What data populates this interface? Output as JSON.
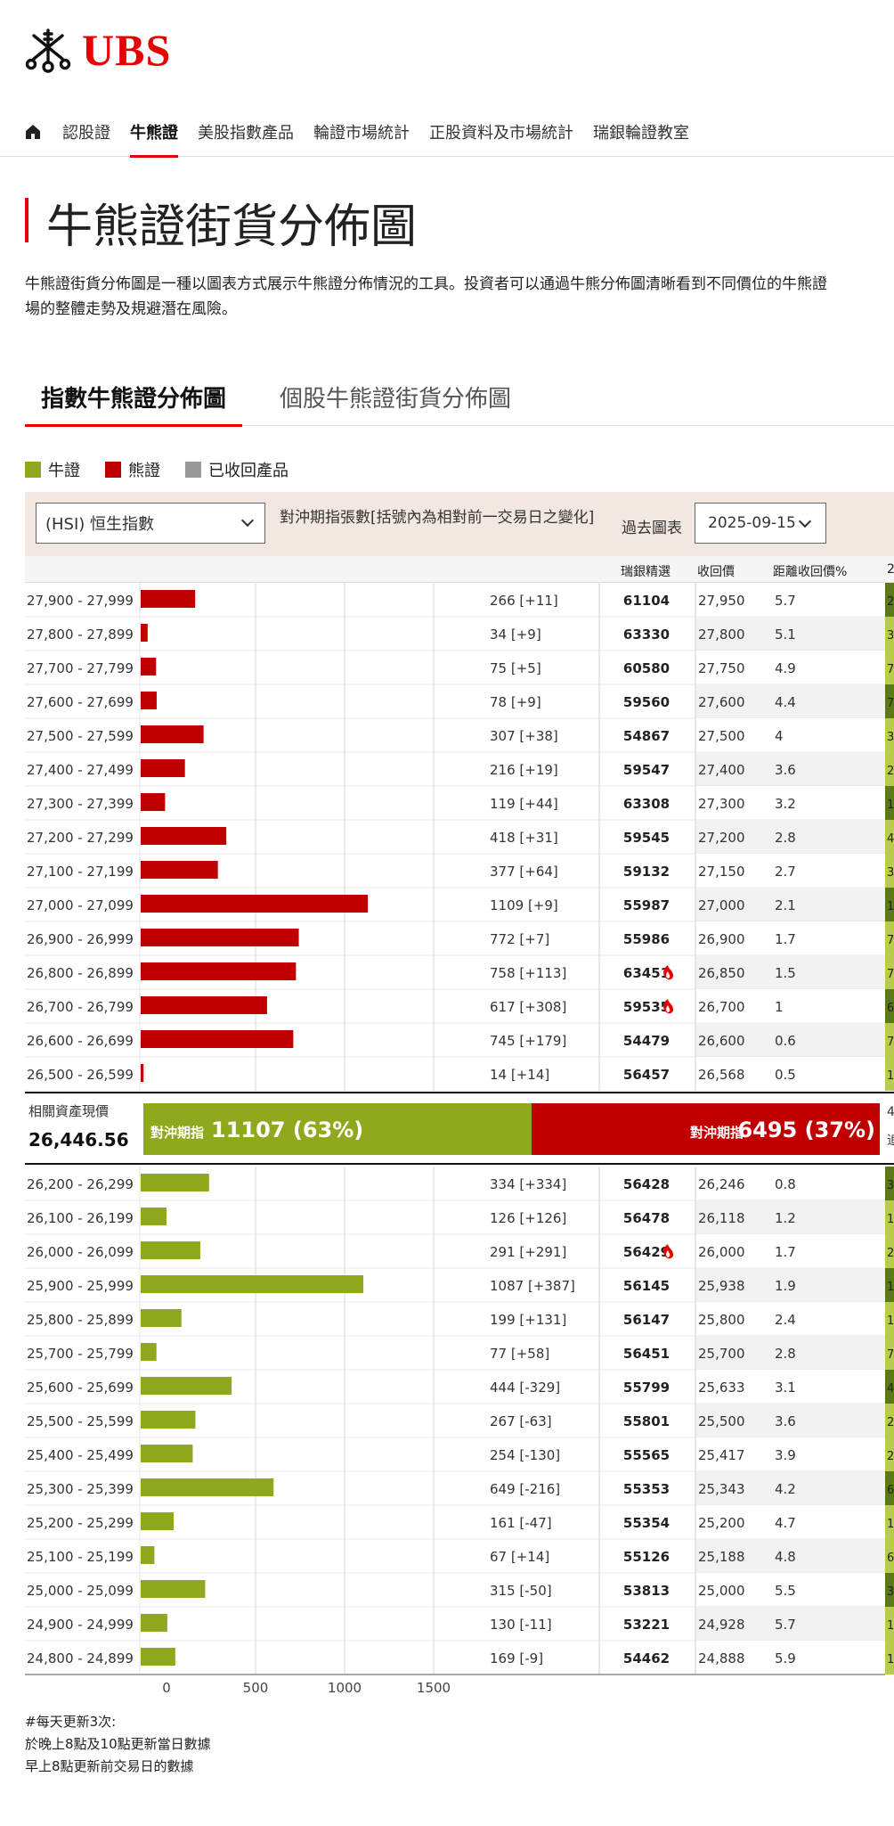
{
  "brand": {
    "name": "UBS"
  },
  "nav": {
    "items": [
      "認股證",
      "牛熊證",
      "美股指數產品",
      "輪證市場統計",
      "正股資料及市場統計",
      "瑞銀輪證教室"
    ],
    "active_index": 1
  },
  "page": {
    "title": "牛熊證街貨分佈圖",
    "description_line1": "牛熊證街貨分佈圖是一種以圖表方式展示牛熊證分佈情況的工具。投資者可以通過牛熊分佈圖清晰看到不同價位的牛熊證",
    "description_line2": "場的整體走勢及規避潛在風險。"
  },
  "tabs": [
    {
      "label": "指數牛熊證分佈圖",
      "active": true
    },
    {
      "label": "個股牛熊證街貨分佈圖",
      "active": false
    }
  ],
  "legend": [
    {
      "label": "牛證",
      "color": "#8fa91e"
    },
    {
      "label": "熊證",
      "color": "#c00000"
    },
    {
      "label": "已收回產品",
      "color": "#999999"
    }
  ],
  "controls": {
    "index_select": "(HSI) 恒生指數",
    "hedge_label": "對沖期指張數[括號內為相對前一交易日之變化]",
    "past_chart_label": "過去圖表",
    "date_value": "2025-09-15"
  },
  "columns": {
    "pick": "瑞銀精選",
    "call_price": "收回價",
    "distance": "距離收回價%",
    "extra": "2"
  },
  "chart_data": {
    "type": "bar",
    "orientation": "horizontal",
    "xticks": [
      0,
      500,
      1000,
      1500
    ],
    "xlim": [
      -100,
      1600
    ],
    "bear_rows": [
      {
        "range": "27,900 - 27,999",
        "value": 266,
        "change": "266 [+11]",
        "pick": "61104",
        "hot": false,
        "call": "27,950",
        "dist": "5.7",
        "extra": "2"
      },
      {
        "range": "27,800 - 27,899",
        "value": 34,
        "change": "34 [+9]",
        "pick": "63330",
        "hot": false,
        "call": "27,800",
        "dist": "5.1",
        "extra": "3"
      },
      {
        "range": "27,700 - 27,799",
        "value": 75,
        "change": "75 [+5]",
        "pick": "60580",
        "hot": false,
        "call": "27,750",
        "dist": "4.9",
        "extra": "7"
      },
      {
        "range": "27,600 - 27,699",
        "value": 78,
        "change": "78 [+9]",
        "pick": "59560",
        "hot": false,
        "call": "27,600",
        "dist": "4.4",
        "extra": "7"
      },
      {
        "range": "27,500 - 27,599",
        "value": 307,
        "change": "307 [+38]",
        "pick": "54867",
        "hot": false,
        "call": "27,500",
        "dist": "4",
        "extra": "3"
      },
      {
        "range": "27,400 - 27,499",
        "value": 216,
        "change": "216 [+19]",
        "pick": "59547",
        "hot": false,
        "call": "27,400",
        "dist": "3.6",
        "extra": "2"
      },
      {
        "range": "27,300 - 27,399",
        "value": 119,
        "change": "119 [+44]",
        "pick": "63308",
        "hot": false,
        "call": "27,300",
        "dist": "3.2",
        "extra": "1"
      },
      {
        "range": "27,200 - 27,299",
        "value": 418,
        "change": "418 [+31]",
        "pick": "59545",
        "hot": false,
        "call": "27,200",
        "dist": "2.8",
        "extra": "4"
      },
      {
        "range": "27,100 - 27,199",
        "value": 377,
        "change": "377 [+64]",
        "pick": "59132",
        "hot": false,
        "call": "27,150",
        "dist": "2.7",
        "extra": "3"
      },
      {
        "range": "27,000 - 27,099",
        "value": 1109,
        "change": "1109 [+9]",
        "pick": "55987",
        "hot": false,
        "call": "27,000",
        "dist": "2.1",
        "extra": "1"
      },
      {
        "range": "26,900 - 26,999",
        "value": 772,
        "change": "772 [+7]",
        "pick": "55986",
        "hot": false,
        "call": "26,900",
        "dist": "1.7",
        "extra": "7"
      },
      {
        "range": "26,800 - 26,899",
        "value": 758,
        "change": "758 [+113]",
        "pick": "63451",
        "hot": true,
        "call": "26,850",
        "dist": "1.5",
        "extra": "7"
      },
      {
        "range": "26,700 - 26,799",
        "value": 617,
        "change": "617 [+308]",
        "pick": "59535",
        "hot": true,
        "call": "26,700",
        "dist": "1",
        "extra": "6"
      },
      {
        "range": "26,600 - 26,699",
        "value": 745,
        "change": "745 [+179]",
        "pick": "54479",
        "hot": false,
        "call": "26,600",
        "dist": "0.6",
        "extra": "7"
      },
      {
        "range": "26,500 - 26,599",
        "value": 14,
        "change": "14 [+14]",
        "pick": "56457",
        "hot": false,
        "call": "26,568",
        "dist": "0.5",
        "extra": "1"
      }
    ],
    "bull_rows": [
      {
        "range": "26,200 - 26,299",
        "value": 334,
        "change": "334 [+334]",
        "pick": "56428",
        "hot": false,
        "call": "26,246",
        "dist": "0.8",
        "extra": "3"
      },
      {
        "range": "26,100 - 26,199",
        "value": 126,
        "change": "126 [+126]",
        "pick": "56478",
        "hot": false,
        "call": "26,118",
        "dist": "1.2",
        "extra": "1"
      },
      {
        "range": "26,000 - 26,099",
        "value": 291,
        "change": "291 [+291]",
        "pick": "56429",
        "hot": true,
        "call": "26,000",
        "dist": "1.7",
        "extra": "2"
      },
      {
        "range": "25,900 - 25,999",
        "value": 1087,
        "change": "1087 [+387]",
        "pick": "56145",
        "hot": false,
        "call": "25,938",
        "dist": "1.9",
        "extra": "1"
      },
      {
        "range": "25,800 - 25,899",
        "value": 199,
        "change": "199 [+131]",
        "pick": "56147",
        "hot": false,
        "call": "25,800",
        "dist": "2.4",
        "extra": "1"
      },
      {
        "range": "25,700 - 25,799",
        "value": 77,
        "change": "77 [+58]",
        "pick": "56451",
        "hot": false,
        "call": "25,700",
        "dist": "2.8",
        "extra": "7"
      },
      {
        "range": "25,600 - 25,699",
        "value": 444,
        "change": "444 [-329]",
        "pick": "55799",
        "hot": false,
        "call": "25,633",
        "dist": "3.1",
        "extra": "4"
      },
      {
        "range": "25,500 - 25,599",
        "value": 267,
        "change": "267 [-63]",
        "pick": "55801",
        "hot": false,
        "call": "25,500",
        "dist": "3.6",
        "extra": "2"
      },
      {
        "range": "25,400 - 25,499",
        "value": 254,
        "change": "254 [-130]",
        "pick": "55565",
        "hot": false,
        "call": "25,417",
        "dist": "3.9",
        "extra": "2"
      },
      {
        "range": "25,300 - 25,399",
        "value": 649,
        "change": "649 [-216]",
        "pick": "55353",
        "hot": false,
        "call": "25,343",
        "dist": "4.2",
        "extra": "6"
      },
      {
        "range": "25,200 - 25,299",
        "value": 161,
        "change": "161 [-47]",
        "pick": "55354",
        "hot": false,
        "call": "25,200",
        "dist": "4.7",
        "extra": "1"
      },
      {
        "range": "25,100 - 25,199",
        "value": 67,
        "change": "67 [+14]",
        "pick": "55126",
        "hot": false,
        "call": "25,188",
        "dist": "4.8",
        "extra": "6"
      },
      {
        "range": "25,000 - 25,099",
        "value": 315,
        "change": "315 [-50]",
        "pick": "53813",
        "hot": false,
        "call": "25,000",
        "dist": "5.5",
        "extra": "3"
      },
      {
        "range": "24,900 - 24,999",
        "value": 130,
        "change": "130 [-11]",
        "pick": "53221",
        "hot": false,
        "call": "24,928",
        "dist": "5.7",
        "extra": "1"
      },
      {
        "range": "24,800 - 24,899",
        "value": 169,
        "change": "169 [-9]",
        "pick": "54462",
        "hot": false,
        "call": "24,888",
        "dist": "5.9",
        "extra": "1"
      }
    ],
    "summary": {
      "asset_label": "相關資產現價",
      "asset_price": "26,446.56",
      "bull_prefix": "對沖期指",
      "bull_value": "11107 (63%)",
      "bull_share": 0.63,
      "bear_prefix": "對沖期指",
      "bear_value": "6495 (37%)",
      "bear_share": 0.37,
      "right_stub_1": "4",
      "right_stub_2": "追"
    },
    "colors": {
      "bull": "#8fa91e",
      "bear": "#c00000",
      "hot": "#e60000"
    }
  },
  "notes": [
    "#每天更新3次:",
    "於晚上8點及10點更新當日數據",
    "早上8點更新前交易日的數據"
  ]
}
